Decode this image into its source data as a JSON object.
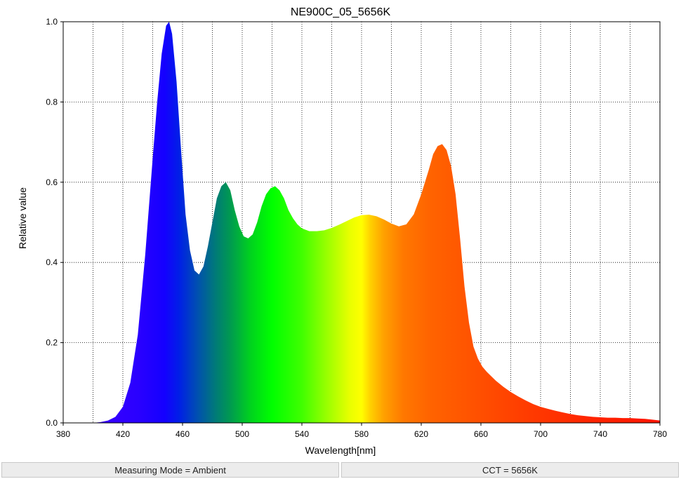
{
  "chart_data": {
    "type": "area",
    "title": "NE900C_05_5656K",
    "xlabel": "Wavelength[nm]",
    "ylabel": "Relative value",
    "xlim": [
      380,
      780
    ],
    "ylim": [
      0,
      1.0
    ],
    "x_ticks": [
      "380",
      "420",
      "460",
      "500",
      "540",
      "580",
      "620",
      "660",
      "700",
      "740",
      "780"
    ],
    "y_ticks": [
      "0.0",
      "0.2",
      "0.4",
      "0.6",
      "0.8",
      "1.0"
    ],
    "grid": true,
    "fill": "spectral wavelength color gradient",
    "series": [
      {
        "x": [
          400,
          405,
          410,
          415,
          420,
          425,
          430,
          435,
          440,
          443,
          446,
          449,
          451,
          453,
          456,
          459,
          462,
          465,
          468,
          471,
          474,
          477,
          480,
          483,
          486,
          489,
          492,
          495,
          498,
          501,
          504,
          507,
          510,
          513,
          516,
          519,
          522,
          525,
          528,
          531,
          534,
          537,
          540,
          545,
          550,
          555,
          560,
          565,
          570,
          575,
          580,
          585,
          590,
          595,
          600,
          605,
          610,
          615,
          620,
          625,
          628,
          631,
          634,
          637,
          640,
          643,
          646,
          649,
          652,
          655,
          658,
          661,
          664,
          667,
          670,
          675,
          680,
          685,
          690,
          695,
          700,
          705,
          710,
          715,
          720,
          725,
          730,
          735,
          740,
          745,
          750,
          755,
          760,
          765,
          770,
          775,
          780
        ],
        "y": [
          0.0,
          0.002,
          0.006,
          0.015,
          0.04,
          0.1,
          0.22,
          0.42,
          0.66,
          0.8,
          0.92,
          0.99,
          1.0,
          0.97,
          0.85,
          0.68,
          0.52,
          0.43,
          0.38,
          0.37,
          0.39,
          0.44,
          0.5,
          0.56,
          0.59,
          0.6,
          0.58,
          0.53,
          0.49,
          0.465,
          0.46,
          0.47,
          0.5,
          0.54,
          0.57,
          0.585,
          0.59,
          0.58,
          0.56,
          0.53,
          0.51,
          0.495,
          0.485,
          0.478,
          0.478,
          0.48,
          0.486,
          0.494,
          0.503,
          0.512,
          0.518,
          0.519,
          0.515,
          0.507,
          0.497,
          0.49,
          0.495,
          0.52,
          0.57,
          0.63,
          0.67,
          0.69,
          0.695,
          0.68,
          0.64,
          0.57,
          0.46,
          0.34,
          0.25,
          0.19,
          0.16,
          0.14,
          0.127,
          0.116,
          0.105,
          0.09,
          0.077,
          0.066,
          0.056,
          0.047,
          0.04,
          0.035,
          0.03,
          0.026,
          0.022,
          0.019,
          0.017,
          0.015,
          0.014,
          0.013,
          0.013,
          0.012,
          0.012,
          0.011,
          0.01,
          0.008,
          0.006
        ]
      }
    ]
  },
  "status_bar": {
    "measuring_mode": "Measuring Mode = Ambient",
    "cct": "CCT = 5656K"
  }
}
